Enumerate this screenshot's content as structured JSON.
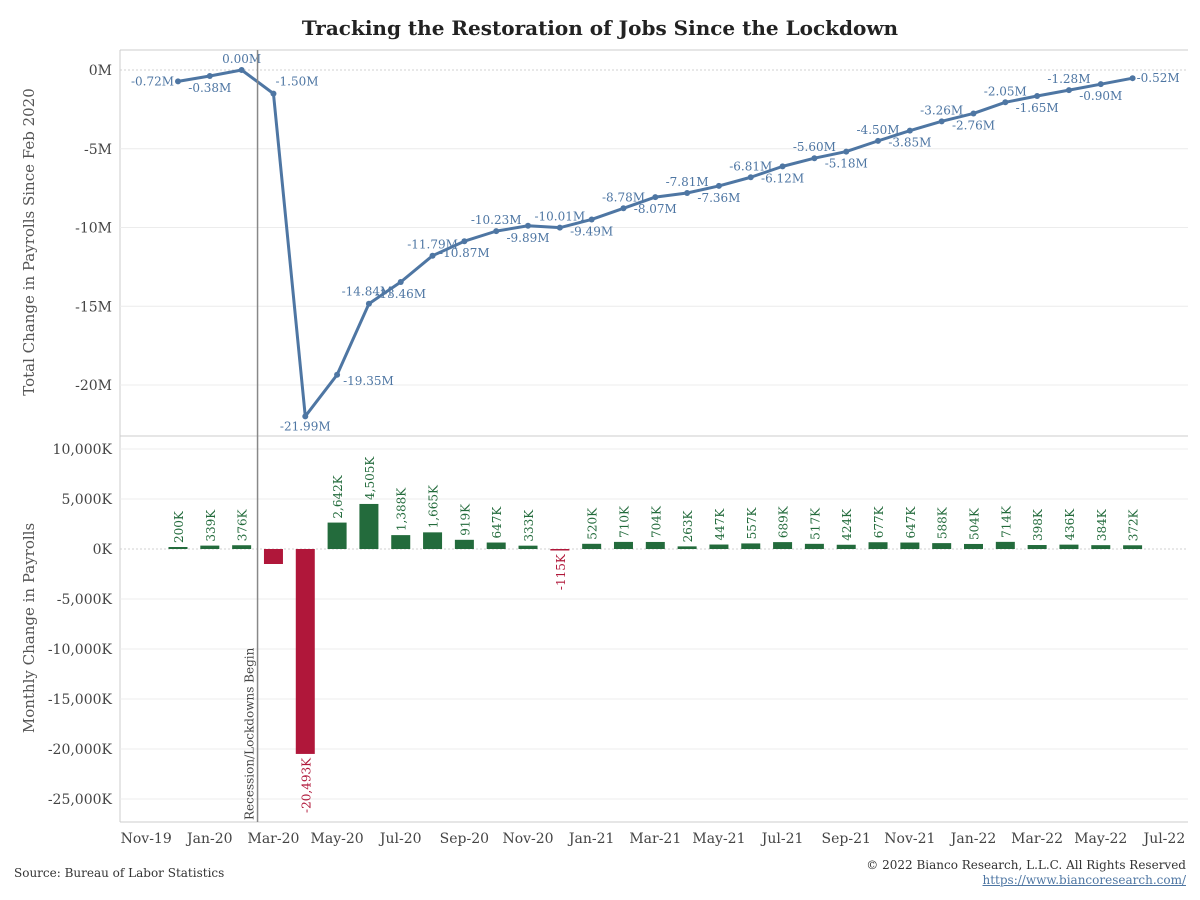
{
  "title": "Tracking the Restoration of Jobs Since the Lockdown",
  "footer": {
    "source": "Source: Bureau of Labor Statistics",
    "copyright": "© 2022 Bianco Research, L.L.C. All Rights Reserved",
    "url": "https://www.biancoresearch.com/"
  },
  "colors": {
    "line": "#4e76a3",
    "positive": "#236b3c",
    "negative": "#b0173a",
    "event": "#888888"
  },
  "chart_data": [
    {
      "type": "line",
      "ylabel": "Total Change in Payrolls Since Feb 2020",
      "ylim": [
        -22.5,
        0.6
      ],
      "yticks": [
        0,
        -5,
        -10,
        -15,
        -20
      ],
      "ytick_labels": [
        "0M",
        "-5M",
        "-10M",
        "-15M",
        "-20M"
      ],
      "x": [
        "Dec-19",
        "Jan-20",
        "Feb-20",
        "Mar-20",
        "Apr-20",
        "May-20",
        "Jun-20",
        "Jul-20",
        "Aug-20",
        "Sep-20",
        "Oct-20",
        "Nov-20",
        "Dec-20",
        "Jan-21",
        "Feb-21",
        "Mar-21",
        "Apr-21",
        "May-21",
        "Jun-21",
        "Jul-21",
        "Aug-21",
        "Sep-21",
        "Oct-21",
        "Nov-21",
        "Dec-21",
        "Jan-22",
        "Feb-22",
        "Mar-22",
        "Apr-22",
        "May-22",
        "Jun-22"
      ],
      "values": [
        -0.72,
        -0.38,
        0.0,
        -1.5,
        -21.99,
        -19.35,
        -14.84,
        -13.46,
        -11.79,
        -10.87,
        -10.23,
        -9.89,
        -10.01,
        -9.49,
        -8.78,
        -8.07,
        -7.81,
        -7.36,
        -6.81,
        -6.12,
        -5.6,
        -5.18,
        -4.5,
        -3.85,
        -3.26,
        -2.76,
        -2.05,
        -1.65,
        -1.28,
        -0.9,
        -0.52
      ],
      "labels": [
        "-0.72M",
        "-0.38M",
        "0.00M",
        "-1.50M",
        "-21.99M",
        "-19.35M",
        "-14.84M",
        "-13.46M",
        "-11.79M",
        "-10.87M",
        "-10.23M",
        "-9.89M",
        "-10.01M",
        "-9.49M",
        "-8.78M",
        "-8.07M",
        "-7.81M",
        "-7.36M",
        "-6.81M",
        "-6.12M",
        "-5.60M",
        "-5.18M",
        "-4.50M",
        "-3.85M",
        "-3.26M",
        "-2.76M",
        "-2.05M",
        "-1.65M",
        "-1.28M",
        "-0.90M",
        "-0.52M"
      ],
      "grid": true
    },
    {
      "type": "bar",
      "ylabel": "Monthly Change in Payrolls",
      "ylim": [
        -27000,
        11000
      ],
      "yticks": [
        10000,
        5000,
        0,
        -5000,
        -10000,
        -15000,
        -20000,
        -25000
      ],
      "ytick_labels": [
        "10,000K",
        "5,000K",
        "0K",
        "-5,000K",
        "-10,000K",
        "-15,000K",
        "-20,000K",
        "-25,000K"
      ],
      "x": [
        "Dec-19",
        "Jan-20",
        "Feb-20",
        "Mar-20",
        "Apr-20",
        "May-20",
        "Jun-20",
        "Jul-20",
        "Aug-20",
        "Sep-20",
        "Oct-20",
        "Nov-20",
        "Dec-20",
        "Jan-21",
        "Feb-21",
        "Mar-21",
        "Apr-21",
        "May-21",
        "Jun-21",
        "Jul-21",
        "Aug-21",
        "Sep-21",
        "Oct-21",
        "Nov-21",
        "Dec-21",
        "Jan-22",
        "Feb-22",
        "Mar-22",
        "Apr-22",
        "May-22",
        "Jun-22"
      ],
      "values": [
        200,
        339,
        376,
        -1500,
        -20493,
        2642,
        4505,
        1388,
        1665,
        919,
        647,
        333,
        -115,
        520,
        710,
        704,
        263,
        447,
        557,
        689,
        517,
        424,
        677,
        647,
        588,
        504,
        714,
        398,
        436,
        384,
        372
      ],
      "labels": [
        "200K",
        "339K",
        "376K",
        "",
        "-20,493K",
        "2,642K",
        "4,505K",
        "1,388K",
        "1,665K",
        "919K",
        "647K",
        "333K",
        "-115K",
        "520K",
        "710K",
        "704K",
        "263K",
        "447K",
        "557K",
        "689K",
        "517K",
        "424K",
        "677K",
        "647K",
        "588K",
        "504K",
        "714K",
        "398K",
        "436K",
        "384K",
        "372K"
      ],
      "grid": true
    }
  ],
  "x_axis": {
    "tick_labels": [
      "Nov-19",
      "Jan-20",
      "Mar-20",
      "May-20",
      "Jul-20",
      "Sep-20",
      "Nov-20",
      "Jan-21",
      "Mar-21",
      "May-21",
      "Jul-21",
      "Sep-21",
      "Nov-21",
      "Jan-22",
      "Mar-22",
      "May-22",
      "Jul-22"
    ]
  },
  "event_marker": {
    "label": "Recession/Lockdowns Begin",
    "after": "Feb-20"
  }
}
